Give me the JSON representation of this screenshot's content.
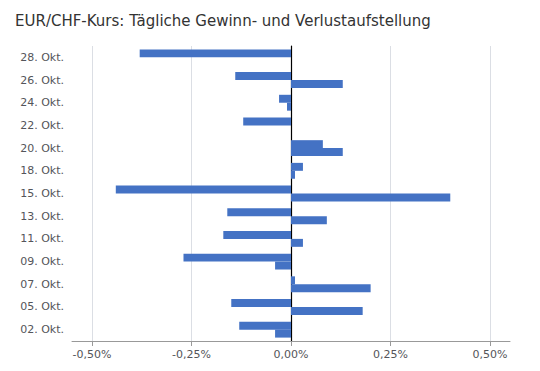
{
  "chart_data": {
    "type": "bar",
    "orientation": "horizontal",
    "title": "EUR/CHF-Kurs: Tägliche Gewinn- und Verlustaufstellung",
    "categories": [
      "28. Okt.",
      "26. Okt.",
      "24. Okt.",
      "22. Okt.",
      "20. Okt.",
      "18. Okt.",
      "15. Okt.",
      "13. Okt.",
      "11. Okt.",
      "09. Okt.",
      "07. Okt.",
      "05. Okt.",
      "02. Okt."
    ],
    "series": [
      {
        "values": [
          -0.38,
          -0.14,
          -0.03,
          -0.12,
          0.08,
          0.03,
          -0.44,
          -0.16,
          -0.17,
          -0.27,
          0.01,
          -0.15,
          -0.13
        ]
      },
      {
        "values": [
          0.0,
          0.13,
          -0.01,
          0.0,
          0.13,
          0.01,
          0.4,
          0.09,
          0.03,
          -0.04,
          0.2,
          0.18,
          -0.04
        ]
      }
    ],
    "color": "#4472C4",
    "xlim": [
      -0.55,
      0.55
    ],
    "xticks": [
      {
        "value": -0.5,
        "label": "-0,50%"
      },
      {
        "value": -0.25,
        "label": "-0,25%"
      },
      {
        "value": 0.0,
        "label": "0,00%"
      },
      {
        "value": 0.25,
        "label": "0,25%"
      },
      {
        "value": 0.5,
        "label": "0,50%"
      }
    ],
    "grid": true
  }
}
